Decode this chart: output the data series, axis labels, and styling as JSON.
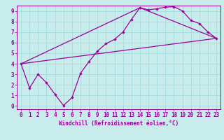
{
  "xlabel": "Windchill (Refroidissement éolien,°C)",
  "bg_color": "#c8ecec",
  "line_color": "#990099",
  "grid_color": "#aadddd",
  "xlim": [
    -0.5,
    23.5
  ],
  "ylim": [
    -0.3,
    9.5
  ],
  "xticks": [
    0,
    1,
    2,
    3,
    4,
    5,
    6,
    7,
    8,
    9,
    10,
    11,
    12,
    13,
    14,
    15,
    16,
    17,
    18,
    19,
    20,
    21,
    22,
    23
  ],
  "yticks": [
    0,
    1,
    2,
    3,
    4,
    5,
    6,
    7,
    8,
    9
  ],
  "line1_x": [
    0,
    1,
    2,
    3,
    4,
    5,
    6,
    7,
    8,
    9,
    10,
    11,
    12,
    13,
    14,
    15,
    16,
    17,
    18,
    19,
    20,
    21,
    22,
    23
  ],
  "line1_y": [
    4.0,
    1.7,
    3.0,
    2.2,
    1.1,
    0.05,
    0.8,
    3.1,
    4.2,
    5.2,
    5.9,
    6.3,
    7.0,
    8.2,
    9.3,
    9.1,
    9.2,
    9.35,
    9.4,
    9.0,
    8.1,
    7.8,
    7.0,
    6.4
  ],
  "line3_x": [
    0,
    23
  ],
  "line3_y": [
    4.0,
    6.4
  ],
  "line4_x": [
    0,
    14,
    23
  ],
  "line4_y": [
    4.0,
    9.3,
    6.4
  ],
  "xlabel_fontsize": 5.5,
  "tick_fontsize": 5.5
}
